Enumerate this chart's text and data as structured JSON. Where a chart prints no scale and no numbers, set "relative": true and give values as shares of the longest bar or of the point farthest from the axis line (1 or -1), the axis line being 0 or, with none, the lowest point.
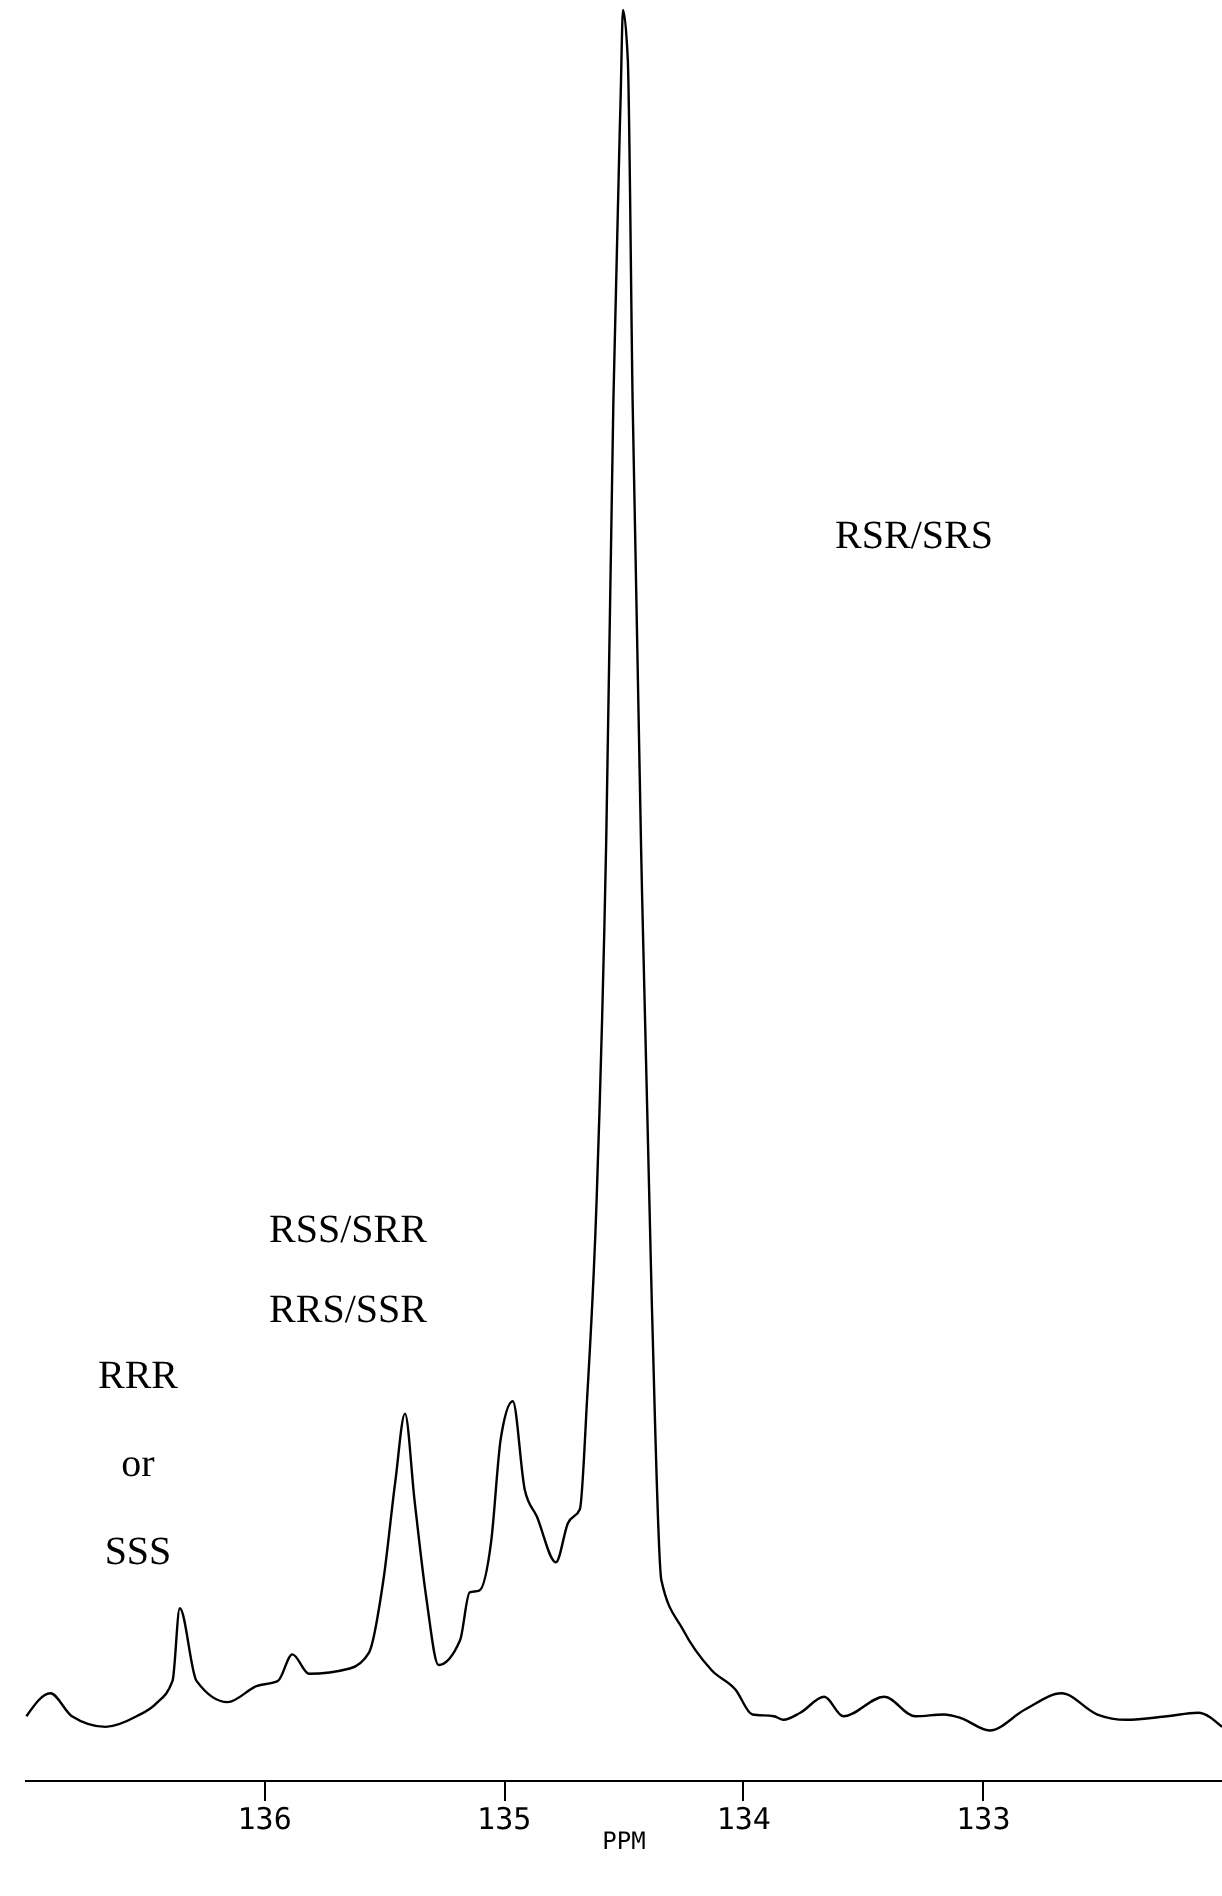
{
  "chart_data": {
    "type": "line",
    "relative": true,
    "xlabel": "PPM",
    "xlim": [
      137,
      132
    ],
    "xticks": [
      136,
      135,
      134,
      133
    ],
    "x": [
      136.99,
      136.89,
      136.8,
      136.66,
      136.53,
      136.45,
      136.38,
      136.35,
      136.28,
      136.15,
      136.03,
      135.94,
      135.88,
      135.81,
      135.64,
      135.56,
      135.5,
      135.45,
      135.41,
      135.37,
      135.32,
      135.27,
      135.18,
      135.14,
      135.1,
      135.05,
      135.01,
      134.96,
      134.91,
      134.86,
      134.78,
      134.73,
      134.68,
      134.65,
      134.61,
      134.57,
      134.54,
      134.51,
      134.5,
      134.48,
      134.46,
      134.42,
      134.38,
      134.34,
      134.25,
      134.13,
      134.03,
      133.96,
      133.87,
      133.83,
      133.76,
      133.66,
      133.58,
      133.41,
      133.28,
      133.16,
      133.09,
      132.97,
      132.82,
      132.67,
      132.52,
      132.4,
      132.23,
      132.1,
      132.0
    ],
    "series": [
      {
        "color": "#000000",
        "values": [
          0.036,
          0.049,
          0.036,
          0.03,
          0.036,
          0.043,
          0.056,
          0.097,
          0.056,
          0.044,
          0.053,
          0.056,
          0.071,
          0.06,
          0.063,
          0.072,
          0.113,
          0.169,
          0.207,
          0.158,
          0.102,
          0.065,
          0.079,
          0.106,
          0.107,
          0.135,
          0.193,
          0.214,
          0.164,
          0.149,
          0.123,
          0.145,
          0.153,
          0.215,
          0.328,
          0.531,
          0.78,
          0.95,
          1.0,
          0.972,
          0.78,
          0.498,
          0.271,
          0.113,
          0.085,
          0.062,
          0.051,
          0.037,
          0.036,
          0.034,
          0.038,
          0.047,
          0.036,
          0.047,
          0.036,
          0.037,
          0.035,
          0.028,
          0.04,
          0.049,
          0.037,
          0.034,
          0.036,
          0.038,
          0.03
        ]
      }
    ],
    "annotations": [
      "RRR\nor\nSSS",
      "RSS/SRR\nRRS/SSR",
      "RSR/SRS"
    ]
  }
}
